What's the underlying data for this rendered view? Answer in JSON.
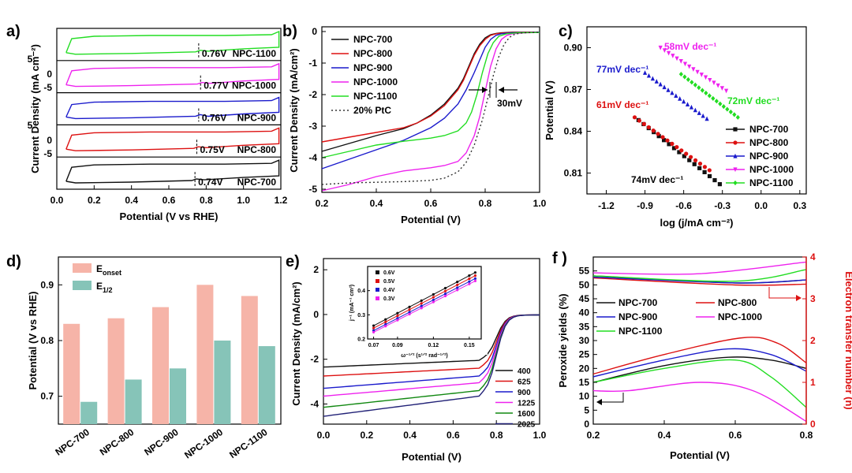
{
  "figure": {
    "panel_labels": [
      "a)",
      "b)",
      "c)",
      "d)",
      "e)",
      "f )"
    ]
  },
  "chart_data": [
    {
      "id": "a",
      "type": "line",
      "xlabel": "Potential (V vs RHE)",
      "ylabel": "Current Density (mA cm⁻²)",
      "xlim": [
        0,
        1.2
      ],
      "xticks": [
        "0.0",
        "0.2",
        "0.4",
        "0.6",
        "0.8",
        "1.0",
        "1.2"
      ],
      "yticks_shown": [
        "5",
        "0",
        "-5",
        "5",
        "0",
        "-5"
      ],
      "series": [
        {
          "name": "NPC-1100",
          "color": "#22dd22",
          "peak": "0.76V",
          "peak_x": 0.76
        },
        {
          "name": "NPC-1000",
          "color": "#ee22ee",
          "peak": "0.77V",
          "peak_x": 0.77
        },
        {
          "name": "NPC-900",
          "color": "#1a1acc",
          "peak": "0.76V",
          "peak_x": 0.76
        },
        {
          "name": "NPC-800",
          "color": "#dd1111",
          "peak": "0.75V",
          "peak_x": 0.75
        },
        {
          "name": "NPC-700",
          "color": "#111111",
          "peak": "0.74V",
          "peak_x": 0.74
        }
      ]
    },
    {
      "id": "b",
      "type": "line",
      "xlabel": "Potential (V)",
      "ylabel": "Current Density (mA/cm²)",
      "xlim": [
        0.2,
        1.0
      ],
      "ylim": [
        -5.1,
        0.15
      ],
      "xticks": [
        "0.2",
        "0.4",
        "0.6",
        "0.8",
        "1.0"
      ],
      "yticks": [
        "0",
        "-1",
        "-2",
        "-3",
        "-4",
        "-5"
      ],
      "annotation": "30mV",
      "series": [
        {
          "name": "NPC-700",
          "color": "#111111",
          "dash": false,
          "x": [
            0.2,
            0.3,
            0.4,
            0.5,
            0.55,
            0.6,
            0.65,
            0.7,
            0.72,
            0.74,
            0.76,
            0.78,
            0.8,
            0.82,
            0.84,
            0.86,
            0.9,
            0.95,
            1.0
          ],
          "y": [
            -3.8,
            -3.55,
            -3.3,
            -3.08,
            -2.9,
            -2.65,
            -2.3,
            -1.8,
            -1.5,
            -1.1,
            -0.7,
            -0.4,
            -0.2,
            -0.1,
            -0.06,
            -0.04,
            -0.02,
            -0.02,
            -0.02
          ]
        },
        {
          "name": "NPC-800",
          "color": "#dd1111",
          "dash": false,
          "x": [
            0.2,
            0.3,
            0.4,
            0.5,
            0.55,
            0.6,
            0.65,
            0.7,
            0.72,
            0.74,
            0.76,
            0.78,
            0.8,
            0.82,
            0.84,
            0.86,
            0.9,
            0.95,
            1.0
          ],
          "y": [
            -3.5,
            -3.35,
            -3.2,
            -3.05,
            -2.9,
            -2.68,
            -2.35,
            -1.85,
            -1.55,
            -1.15,
            -0.75,
            -0.45,
            -0.25,
            -0.12,
            -0.07,
            -0.05,
            -0.03,
            -0.02,
            -0.02
          ]
        },
        {
          "name": "NPC-900",
          "color": "#1a1acc",
          "dash": false,
          "x": [
            0.2,
            0.3,
            0.4,
            0.5,
            0.6,
            0.65,
            0.7,
            0.73,
            0.76,
            0.78,
            0.8,
            0.82,
            0.84,
            0.86,
            0.9,
            0.95,
            1.0
          ],
          "y": [
            -4.35,
            -4.05,
            -3.75,
            -3.45,
            -3.05,
            -2.75,
            -2.3,
            -1.85,
            -1.3,
            -0.9,
            -0.5,
            -0.25,
            -0.12,
            -0.07,
            -0.04,
            -0.03,
            -0.02
          ]
        },
        {
          "name": "NPC-1000",
          "color": "#ee22ee",
          "dash": false,
          "x": [
            0.2,
            0.3,
            0.4,
            0.5,
            0.6,
            0.65,
            0.7,
            0.73,
            0.76,
            0.78,
            0.8,
            0.82,
            0.84,
            0.86,
            0.88,
            0.9,
            0.95,
            1.0
          ],
          "y": [
            -5.05,
            -4.85,
            -4.6,
            -4.42,
            -4.32,
            -4.25,
            -4.12,
            -3.85,
            -3.3,
            -2.7,
            -1.9,
            -1.1,
            -0.55,
            -0.25,
            -0.12,
            -0.07,
            -0.04,
            -0.03
          ]
        },
        {
          "name": "NPC-1100",
          "color": "#22dd22",
          "dash": false,
          "x": [
            0.2,
            0.3,
            0.4,
            0.5,
            0.6,
            0.65,
            0.7,
            0.73,
            0.75,
            0.77,
            0.79,
            0.81,
            0.83,
            0.85,
            0.88,
            0.92,
            1.0
          ],
          "y": [
            -4.0,
            -3.8,
            -3.6,
            -3.48,
            -3.38,
            -3.3,
            -3.15,
            -2.9,
            -2.55,
            -2.0,
            -1.3,
            -0.7,
            -0.35,
            -0.15,
            -0.07,
            -0.04,
            -0.03
          ]
        },
        {
          "name": "20% PtC",
          "color": "#333333",
          "dash": true,
          "x": [
            0.2,
            0.3,
            0.4,
            0.5,
            0.6,
            0.65,
            0.7,
            0.73,
            0.76,
            0.79,
            0.81,
            0.83,
            0.85,
            0.87,
            0.89,
            0.91,
            0.94,
            1.0
          ],
          "y": [
            -4.85,
            -4.8,
            -4.78,
            -4.76,
            -4.72,
            -4.65,
            -4.45,
            -4.15,
            -3.6,
            -2.8,
            -2.1,
            -1.4,
            -0.8,
            -0.4,
            -0.18,
            -0.08,
            -0.04,
            -0.02
          ]
        }
      ]
    },
    {
      "id": "c",
      "type": "scatter",
      "xlabel": "log (j/mA cm⁻²)",
      "ylabel": "Potential (V)",
      "xlim": [
        -1.35,
        0.35
      ],
      "ylim": [
        0.795,
        0.915
      ],
      "xticks": [
        "-1.2",
        "-0.9",
        "-0.6",
        "-0.3",
        "0.0",
        "0.3"
      ],
      "yticks": [
        "0.81",
        "0.84",
        "0.87",
        "0.90"
      ],
      "series": [
        {
          "name": "NPC-700",
          "color": "#111111",
          "marker": "square",
          "x_range": [
            -0.95,
            -0.32
          ],
          "y_range": [
            0.848,
            0.802
          ],
          "slope_label": "74mV dec⁻¹"
        },
        {
          "name": "NPC-800",
          "color": "#dd1111",
          "marker": "circle",
          "x_range": [
            -0.98,
            -0.4
          ],
          "y_range": [
            0.85,
            0.812
          ],
          "slope_label": "61mV dec⁻¹"
        },
        {
          "name": "NPC-900",
          "color": "#1a1acc",
          "marker": "triangle-up",
          "x_range": [
            -0.9,
            -0.42
          ],
          "y_range": [
            0.882,
            0.849
          ],
          "slope_label": "77mV dec⁻¹"
        },
        {
          "name": "NPC-1000",
          "color": "#ee22ee",
          "marker": "triangle-down",
          "x_range": [
            -0.78,
            -0.27
          ],
          "y_range": [
            0.9,
            0.869
          ],
          "slope_label": "58mV dec⁻¹"
        },
        {
          "name": "NPC-1100",
          "color": "#22dd22",
          "marker": "diamond",
          "x_range": [
            -0.62,
            -0.18
          ],
          "y_range": [
            0.881,
            0.85
          ],
          "slope_label": "72mV dec⁻¹"
        }
      ]
    },
    {
      "id": "d",
      "type": "bar",
      "ylabel": "Potential (V vs RHE)",
      "ylim": [
        0.65,
        0.95
      ],
      "yticks": [
        "0.7",
        "0.8",
        "0.9"
      ],
      "categories": [
        "NPC-700",
        "NPC-800",
        "NPC-900",
        "NPC-1000",
        "NPC-1100"
      ],
      "series": [
        {
          "name": "E",
          "sub": "onset",
          "color": "#f6b4a8",
          "values": [
            0.83,
            0.84,
            0.86,
            0.9,
            0.88
          ]
        },
        {
          "name": "E",
          "sub": "1/2",
          "color": "#86c4b8",
          "values": [
            0.69,
            0.73,
            0.75,
            0.8,
            0.79
          ]
        }
      ]
    },
    {
      "id": "e",
      "type": "line",
      "xlabel": "Potential (V)",
      "ylabel": "Current Density (mA/cm²)",
      "xlim": [
        0.0,
        1.0
      ],
      "ylim": [
        -4.9,
        2.5
      ],
      "xticks": [
        "0.0",
        "0.2",
        "0.4",
        "0.6",
        "0.8",
        "1.0"
      ],
      "yticks": [
        "2",
        "0",
        "-2",
        "-4"
      ],
      "series": [
        {
          "name": "400",
          "color": "#111111",
          "plateau": [
            -2.35,
            -2.05
          ]
        },
        {
          "name": "625",
          "color": "#dd1111",
          "plateau": [
            -2.75,
            -2.4
          ]
        },
        {
          "name": "900",
          "color": "#1a1acc",
          "plateau": [
            -3.3,
            -2.75
          ]
        },
        {
          "name": "1225",
          "color": "#ee22ee",
          "plateau": [
            -3.65,
            -3.05
          ]
        },
        {
          "name": "1600",
          "color": "#118811",
          "plateau": [
            -4.15,
            -3.4
          ]
        },
        {
          "name": "2025",
          "color": "#222277",
          "plateau": [
            -4.55,
            -3.65
          ]
        }
      ],
      "inset": {
        "type": "scatter",
        "xlabel": "ω⁻¹ᐟ² (s¹ᐟ² rad⁻¹ᐟ²)",
        "ylabel": "j⁻¹ (mA⁻¹ cm²)",
        "xlim": [
          0.065,
          0.16
        ],
        "ylim": [
          0.2,
          0.5
        ],
        "xticks": [
          "0.07",
          "0.09",
          "0.12",
          "0.15"
        ],
        "yticks": [
          "0.2",
          "0.3",
          "0.4"
        ],
        "series": [
          {
            "name": "0.6V",
            "color": "#111111",
            "y_at_x": [
              0.255,
              0.475
            ]
          },
          {
            "name": "0.5V",
            "color": "#dd1111",
            "y_at_x": [
              0.245,
              0.462
            ]
          },
          {
            "name": "0.4V",
            "color": "#1a1acc",
            "y_at_x": [
              0.235,
              0.45
            ]
          },
          {
            "name": "0.3V",
            "color": "#ee22ee",
            "y_at_x": [
              0.228,
              0.44
            ]
          }
        ]
      }
    },
    {
      "id": "f",
      "type": "line",
      "xlabel": "Potential (V)",
      "ylabel": "Peroxide yields (%)",
      "y2label": "Electron transfer number (n)",
      "xlim": [
        0.2,
        0.8
      ],
      "ylim": [
        0,
        60
      ],
      "y2lim": [
        0,
        4
      ],
      "xticks": [
        "0.2",
        "0.4",
        "0.6",
        "0.8"
      ],
      "yticks": [
        "0",
        "5",
        "10",
        "15",
        "20",
        "25",
        "30",
        "35",
        "40",
        "45",
        "50",
        "55"
      ],
      "y2ticks": [
        "0",
        "1",
        "2",
        "3",
        "4"
      ],
      "series": [
        {
          "name": "NPC-700",
          "color": "#111111",
          "peroxide": [
            [
              0.2,
              15
            ],
            [
              0.4,
              21
            ],
            [
              0.58,
              24
            ],
            [
              0.7,
              23
            ],
            [
              0.8,
              20
            ]
          ],
          "n": [
            [
              0.2,
              3.55
            ],
            [
              0.6,
              3.38
            ],
            [
              0.8,
              3.45
            ]
          ]
        },
        {
          "name": "NPC-800",
          "color": "#dd1111",
          "peroxide": [
            [
              0.2,
              18
            ],
            [
              0.4,
              25
            ],
            [
              0.62,
              31
            ],
            [
              0.72,
              29
            ],
            [
              0.8,
              22
            ]
          ],
          "n": [
            [
              0.2,
              3.5
            ],
            [
              0.6,
              3.33
            ],
            [
              0.8,
              3.35
            ]
          ]
        },
        {
          "name": "NPC-900",
          "color": "#1a1acc",
          "peroxide": [
            [
              0.2,
              17
            ],
            [
              0.4,
              23
            ],
            [
              0.58,
              27
            ],
            [
              0.7,
              25
            ],
            [
              0.8,
              19
            ]
          ],
          "n": [
            [
              0.2,
              3.52
            ],
            [
              0.6,
              3.38
            ],
            [
              0.8,
              3.45
            ]
          ]
        },
        {
          "name": "NPC-1000",
          "color": "#ee22ee",
          "peroxide": [
            [
              0.2,
              12
            ],
            [
              0.3,
              12
            ],
            [
              0.5,
              15
            ],
            [
              0.65,
              12
            ],
            [
              0.8,
              1
            ]
          ],
          "n": [
            [
              0.2,
              3.62
            ],
            [
              0.5,
              3.6
            ],
            [
              0.8,
              3.88
            ]
          ]
        },
        {
          "name": "NPC-1100",
          "color": "#22dd22",
          "peroxide": [
            [
              0.2,
              15
            ],
            [
              0.4,
              20
            ],
            [
              0.6,
              23
            ],
            [
              0.7,
              17
            ],
            [
              0.8,
              6
            ]
          ],
          "n": [
            [
              0.2,
              3.55
            ],
            [
              0.6,
              3.42
            ],
            [
              0.8,
              3.7
            ]
          ]
        }
      ]
    }
  ]
}
